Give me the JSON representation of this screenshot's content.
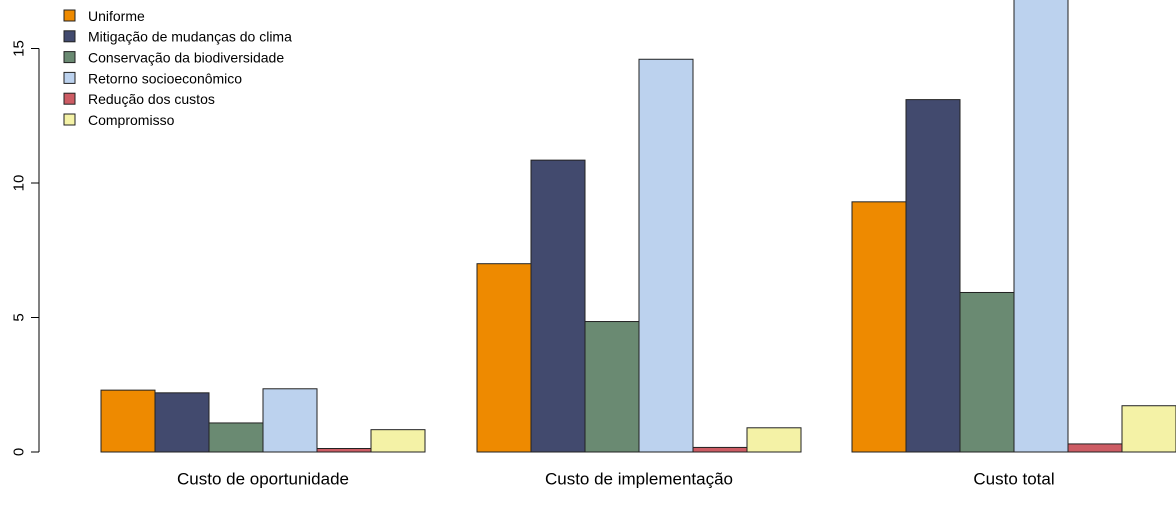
{
  "chart_data": {
    "type": "bar",
    "categories": [
      "Custo de oportunidade",
      "Custo de implementação",
      "Custo total"
    ],
    "series": [
      {
        "name": "Uniforme",
        "color": "#EE8A00",
        "values": [
          2.3,
          7.0,
          9.3
        ]
      },
      {
        "name": "Mitigação de mudanças do clima",
        "color": "#424A6E",
        "values": [
          2.2,
          10.85,
          13.1
        ]
      },
      {
        "name": "Conservação da biodiversidade",
        "color": "#6A8A72",
        "values": [
          1.08,
          4.85,
          5.93
        ]
      },
      {
        "name": "Retorno socioeconômico",
        "color": "#BCD2EE",
        "values": [
          2.35,
          14.6,
          17.0
        ]
      },
      {
        "name": "Redução dos custos",
        "color": "#CD5C64",
        "values": [
          0.13,
          0.17,
          0.3
        ]
      },
      {
        "name": "Compromisso",
        "color": "#F4F2A6",
        "values": [
          0.83,
          0.9,
          1.72
        ]
      }
    ],
    "yticks": [
      0,
      5,
      10,
      15
    ],
    "ylim": [
      0,
      17
    ],
    "legend_position": "top-left",
    "title": "",
    "xlabel": "",
    "ylabel": ""
  }
}
